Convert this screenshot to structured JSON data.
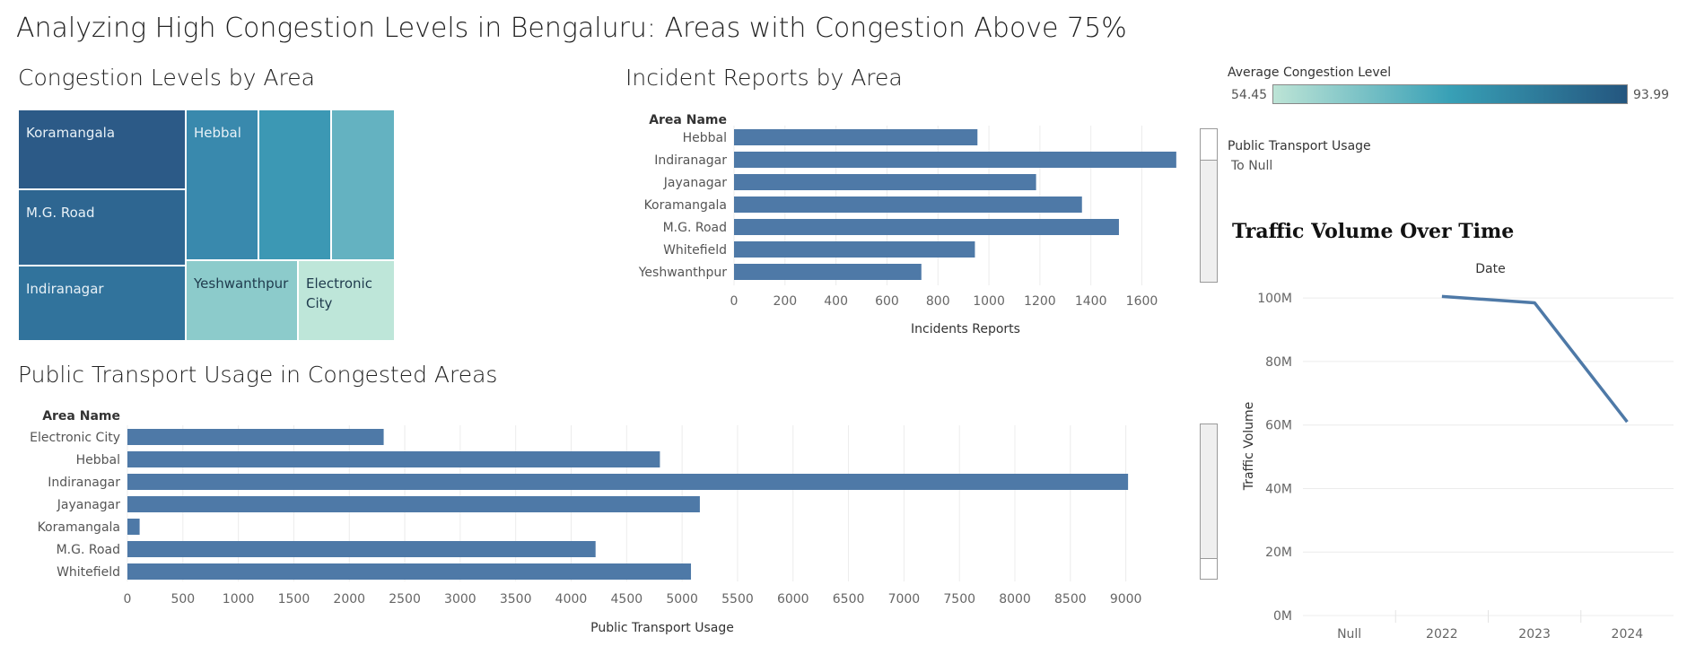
{
  "dashboard": {
    "title": "Analyzing High Congestion Levels in Bengaluru: Areas with Congestion Above 75%"
  },
  "legend": {
    "title": "Average Congestion Level",
    "min_label": "54.45",
    "max_label": "93.99",
    "colors": [
      "#bde4d6",
      "#38a0b6",
      "#24567f"
    ]
  },
  "filter": {
    "title": "Public Transport Usage",
    "value": "To Null"
  },
  "chart_data": [
    {
      "type": "treemap",
      "title": "Congestion Levels by Area",
      "tiles": [
        {
          "label": "Koramangala",
          "color": "#2c5a87"
        },
        {
          "label": "M.G. Road",
          "color": "#2e6691"
        },
        {
          "label": "Indiranagar",
          "color": "#31739c"
        },
        {
          "label": "Hebbal",
          "color": "#3989ad"
        },
        {
          "label": "",
          "color": "#3c98b4"
        },
        {
          "label": "",
          "color": "#64b2c1"
        },
        {
          "label": "Yeshwanthpur",
          "color": "#8ccbcb"
        },
        {
          "label": "Electronic City",
          "color": "#bee6d9"
        }
      ]
    },
    {
      "type": "bar",
      "orientation": "horizontal",
      "title": "Incident Reports by Area",
      "category_header": "Area Name",
      "categories": [
        "Hebbal",
        "Indiranagar",
        "Jayanagar",
        "Koramangala",
        "M.G. Road",
        "Whitefield",
        "Yeshwanthpur"
      ],
      "values": [
        955,
        1735,
        1185,
        1365,
        1510,
        945,
        735
      ],
      "xlabel": "Incidents Reports",
      "xticks": [
        0,
        200,
        400,
        600,
        800,
        1000,
        1200,
        1400,
        1600
      ],
      "xlim": [
        0,
        1820
      ],
      "grid": true,
      "color": "#4e79a7"
    },
    {
      "type": "bar",
      "orientation": "horizontal",
      "title": "Public Transport Usage in Congested Areas",
      "category_header": "Area Name",
      "categories": [
        "Electronic City",
        "Hebbal",
        "Indiranagar",
        "Jayanagar",
        "Koramangala",
        "M.G. Road",
        "Whitefield"
      ],
      "values": [
        2310,
        4800,
        9020,
        5160,
        110,
        4220,
        5080
      ],
      "xlabel": "Public Transport Usage",
      "xticks": [
        0,
        500,
        1000,
        1500,
        2000,
        2500,
        3000,
        3500,
        4000,
        4500,
        5000,
        5500,
        6000,
        6500,
        7000,
        7500,
        8000,
        8500,
        9000
      ],
      "xlim": [
        0,
        9650
      ],
      "grid": true,
      "color": "#4e79a7"
    },
    {
      "type": "line",
      "title": "Traffic Volume Over Time",
      "xlabel": "Date",
      "ylabel": "Traffic Volume",
      "categories": [
        "Null",
        "2022",
        "2023",
        "2024"
      ],
      "series": [
        {
          "values": [
            null,
            100500000,
            98500000,
            61000000
          ]
        }
      ],
      "yticks": [
        0,
        20000000,
        40000000,
        60000000,
        80000000,
        100000000
      ],
      "ytick_labels": [
        "0M",
        "20M",
        "40M",
        "60M",
        "80M",
        "100M"
      ],
      "ylim": [
        0,
        104000000
      ],
      "grid": true,
      "color": "#4e79a7"
    }
  ]
}
